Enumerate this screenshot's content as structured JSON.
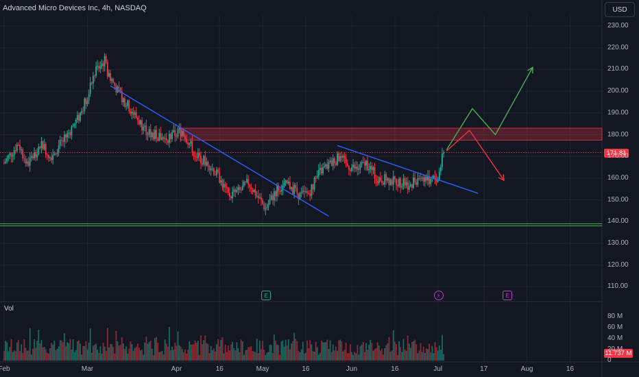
{
  "header": {
    "title": "Advanced Micro Devices Inc, 4h, NASDAQ",
    "currency": "USD"
  },
  "volume": {
    "label": "Vol",
    "last_badge": "11.737 M",
    "last_value_m": 11.737
  },
  "last_price": {
    "label": "171.81",
    "value": 171.81
  },
  "events": [
    {
      "symbol": "E",
      "date": "May 2",
      "color": "#22ab94"
    },
    {
      "symbol": "⚡",
      "date": "Jul 1",
      "color": "#b83cd6"
    },
    {
      "symbol": "E",
      "date": "Jul 25",
      "color": "#b83cd6"
    }
  ],
  "colors": {
    "up": "#22ab94",
    "down": "#f23645",
    "trendline": "#2962ff",
    "support": "#4caf50",
    "resistance_zone": "#f23645"
  },
  "chart_data": {
    "type": "candlestick",
    "y_ticks": [
      "230.00",
      "220.00",
      "210.00",
      "200.00",
      "190.00",
      "180.00",
      "170.00",
      "160.00",
      "150.00",
      "140.00",
      "130.00",
      "120.00",
      "110.00"
    ],
    "y_tick_values": [
      230,
      220,
      210,
      200,
      190,
      180,
      170,
      160,
      150,
      140,
      130,
      120,
      110
    ],
    "volume_ticks": [
      "80 M",
      "60 M",
      "40 M",
      "20 M",
      "0"
    ],
    "volume_tick_values": [
      80,
      60,
      40,
      20,
      0
    ],
    "x_ticks": [
      "Feb",
      "Mar",
      "Apr",
      "16",
      "May",
      "16",
      "Jun",
      "16",
      "Jul",
      "17",
      "Aug",
      "16"
    ],
    "anchors": [
      {
        "date": "Feb 1",
        "price": 167
      },
      {
        "date": "Feb 6",
        "price": 176
      },
      {
        "date": "Feb 9",
        "price": 166
      },
      {
        "date": "Feb 14",
        "price": 176
      },
      {
        "date": "Feb 17",
        "price": 170
      },
      {
        "date": "Feb 22",
        "price": 178
      },
      {
        "date": "Feb 27",
        "price": 188
      },
      {
        "date": "Mar 1",
        "price": 198
      },
      {
        "date": "Mar 4",
        "price": 210
      },
      {
        "date": "Mar 7",
        "price": 214
      },
      {
        "date": "Mar 8",
        "price": 209
      },
      {
        "date": "Mar 12",
        "price": 199
      },
      {
        "date": "Mar 18",
        "price": 188
      },
      {
        "date": "Mar 22",
        "price": 181
      },
      {
        "date": "Mar 28",
        "price": 178
      },
      {
        "date": "Apr 3",
        "price": 182
      },
      {
        "date": "Apr 8",
        "price": 170
      },
      {
        "date": "Apr 12",
        "price": 167
      },
      {
        "date": "Apr 16",
        "price": 160
      },
      {
        "date": "Apr 19",
        "price": 152
      },
      {
        "date": "Apr 23",
        "price": 154
      },
      {
        "date": "Apr 26",
        "price": 158
      },
      {
        "date": "Apr 30",
        "price": 150
      },
      {
        "date": "May 2",
        "price": 146
      },
      {
        "date": "May 6",
        "price": 155
      },
      {
        "date": "May 10",
        "price": 157
      },
      {
        "date": "May 14",
        "price": 152
      },
      {
        "date": "May 17",
        "price": 153
      },
      {
        "date": "May 21",
        "price": 163
      },
      {
        "date": "May 24",
        "price": 166
      },
      {
        "date": "May 28",
        "price": 170
      },
      {
        "date": "May 30",
        "price": 166
      },
      {
        "date": "Jun 3",
        "price": 164
      },
      {
        "date": "Jun 6",
        "price": 167
      },
      {
        "date": "Jun 10",
        "price": 160
      },
      {
        "date": "Jun 14",
        "price": 159
      },
      {
        "date": "Jun 18",
        "price": 158
      },
      {
        "date": "Jun 21",
        "price": 157
      },
      {
        "date": "Jun 25",
        "price": 161
      },
      {
        "date": "Jun 28",
        "price": 159
      },
      {
        "date": "Jul 1",
        "price": 160
      },
      {
        "date": "Jul 3",
        "price": 171.81
      }
    ],
    "resistance_zone": {
      "from": 177.5,
      "to": 183
    },
    "current_price_line": 171.81,
    "support_line": 138.5,
    "trendlines": [
      {
        "color": "#2962ff",
        "points": [
          [
            "Mar 9",
            202.5
          ],
          [
            "May 24",
            142.5
          ]
        ]
      },
      {
        "color": "#2962ff",
        "points": [
          [
            "May 27",
            175
          ],
          [
            "Jul 15",
            153
          ]
        ]
      }
    ],
    "projections": [
      {
        "color": "#4caf50",
        "points": [
          [
            "Jul 4",
            173
          ],
          [
            "Jul 13",
            192
          ],
          [
            "Jul 21",
            180
          ],
          [
            "Aug 3",
            211
          ]
        ]
      },
      {
        "color": "#f23645",
        "points": [
          [
            "Jul 4",
            172.5
          ],
          [
            "Jul 12",
            182
          ],
          [
            "Jul 24",
            159
          ]
        ]
      }
    ]
  }
}
